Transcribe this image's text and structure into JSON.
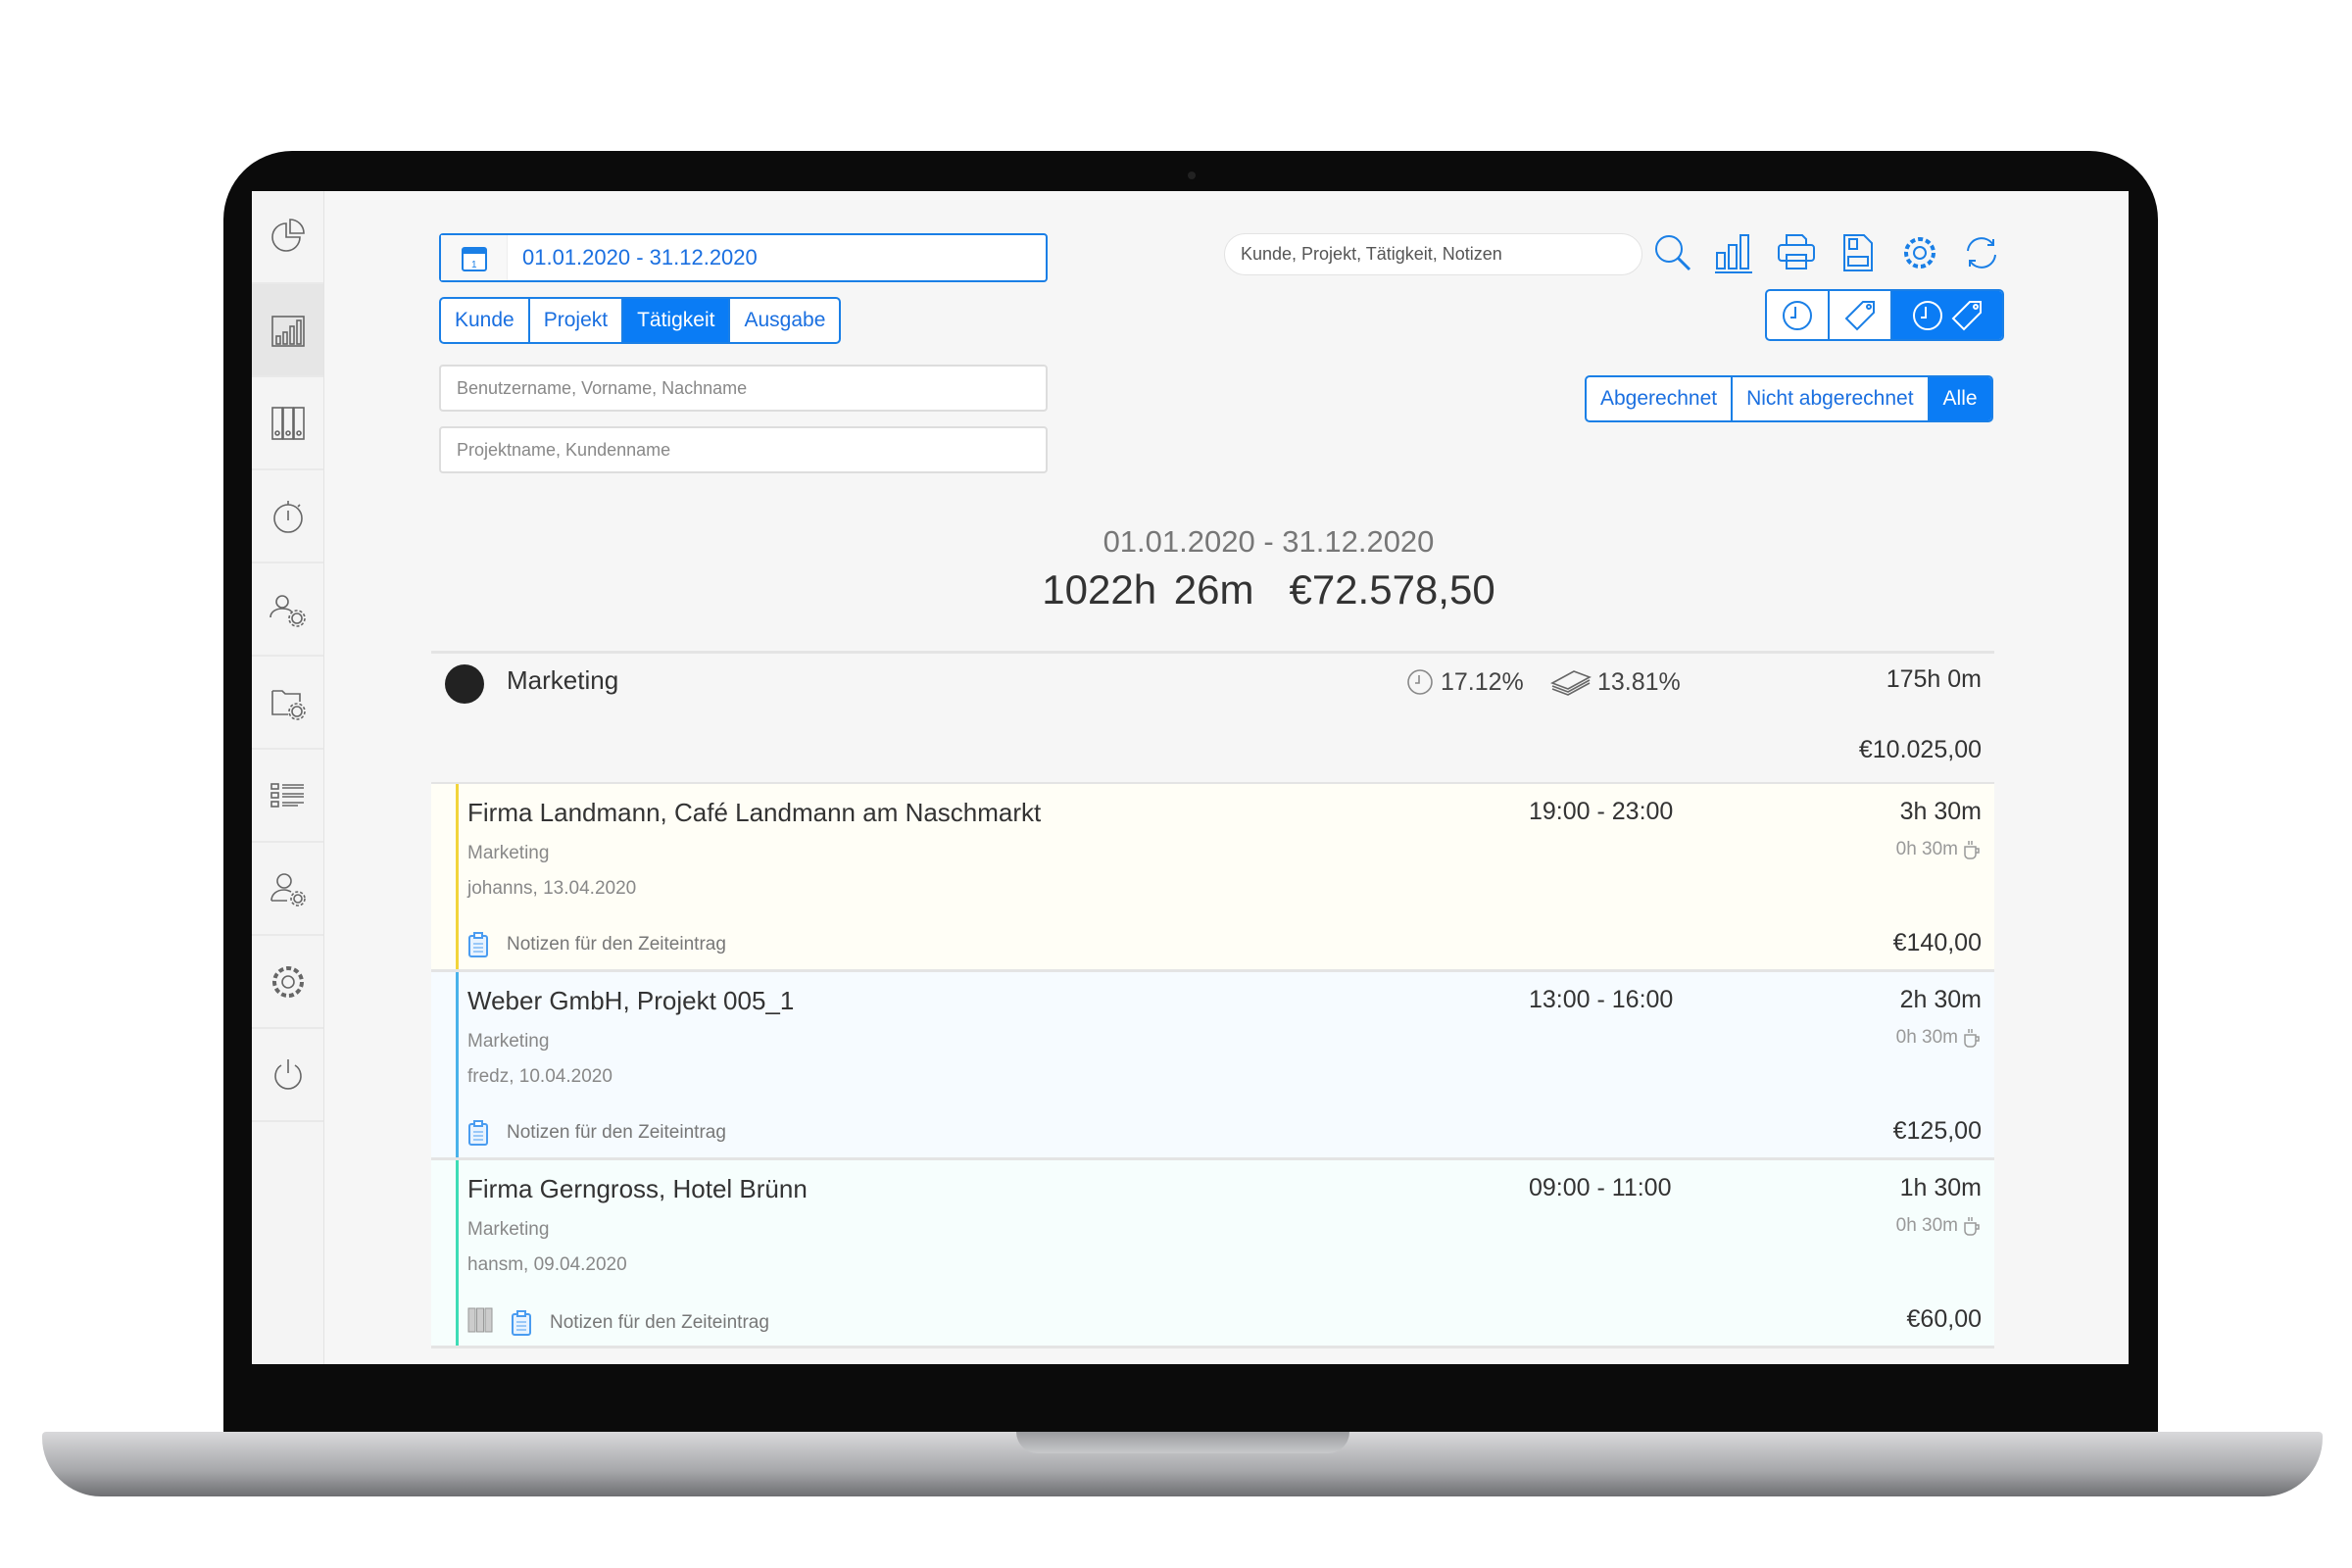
{
  "sidebar": {
    "items": [
      {
        "icon": "pie-chart-icon",
        "label": "Dashboard"
      },
      {
        "icon": "bar-chart-icon",
        "label": "Reports",
        "active": true
      },
      {
        "icon": "binders-icon",
        "label": "Archive"
      },
      {
        "icon": "stopwatch-icon",
        "label": "Time tracking"
      },
      {
        "icon": "users-gear-icon",
        "label": "Team settings"
      },
      {
        "icon": "folder-gear-icon",
        "label": "Project settings"
      },
      {
        "icon": "list-icon",
        "label": "Activities"
      },
      {
        "icon": "user-gear-icon",
        "label": "User settings"
      },
      {
        "icon": "gear-icon",
        "label": "Settings"
      },
      {
        "icon": "power-icon",
        "label": "Logout"
      }
    ]
  },
  "filters": {
    "date_range": "01.01.2020 - 31.12.2020",
    "group_tabs": [
      {
        "label": "Kunde"
      },
      {
        "label": "Projekt"
      },
      {
        "label": "Tätigkeit",
        "active": true
      },
      {
        "label": "Ausgabe"
      }
    ],
    "user_placeholder": "Benutzername, Vorname, Nachname",
    "project_placeholder": "Projektname, Kundenname",
    "search_placeholder": "Kunde, Projekt, Tätigkeit, Notizen",
    "billing": [
      {
        "label": "Abgerechnet"
      },
      {
        "label": "Nicht abgerechnet"
      },
      {
        "label": "Alle",
        "active": true
      }
    ],
    "display_mode": [
      "time",
      "price",
      "time+price"
    ],
    "display_mode_active": "time+price"
  },
  "toolbar": [
    "search-icon",
    "chart-icon",
    "print-icon",
    "csv-export-icon",
    "settings-icon",
    "refresh-icon"
  ],
  "summary": {
    "date_range": "01.01.2020 - 31.12.2020",
    "total_time": "1022h 26m",
    "total_amount": "€72.578,50"
  },
  "group": {
    "name": "Marketing",
    "color": "#222222",
    "time_pct": "17.12%",
    "money_pct": "13.81%",
    "time": "175h 0m",
    "amount": "€10.025,00"
  },
  "entries": [
    {
      "title": "Firma Landmann, Café Landmann am Naschmarkt",
      "activity": "Marketing",
      "user_date": "johanns, 13.04.2020",
      "time": "19:00 - 23:00",
      "duration": "3h 30m",
      "pause": "0h 30m",
      "notes": "Notizen für den Zeiteintrag",
      "price": "€140,00",
      "color": "#f2d43a",
      "bg": "#fffef6"
    },
    {
      "title": "Weber GmbH, Projekt 005_1",
      "activity": "Marketing",
      "user_date": "fredz, 10.04.2020",
      "time": "13:00 - 16:00",
      "duration": "2h 30m",
      "pause": "0h 30m",
      "notes": "Notizen für den Zeiteintrag",
      "price": "€125,00",
      "color": "#49b2ea",
      "bg": "#f6fbff"
    },
    {
      "title": "Firma Gerngross, Hotel Brünn",
      "activity": "Marketing",
      "user_date": "hansm, 09.04.2020",
      "time": "09:00 - 11:00",
      "duration": "1h 30m",
      "pause": "0h 30m",
      "notes": "Notizen für den Zeiteintrag",
      "price": "€60,00",
      "color": "#3ddcb6",
      "bg": "#f6fefd",
      "archived": true
    }
  ],
  "colors": {
    "accent": "#0a7cf5"
  }
}
